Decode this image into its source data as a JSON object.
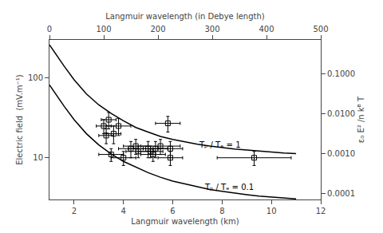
{
  "chart_data": {
    "type": "line",
    "x_label": "Langmuir wavelength (km)",
    "x2_label": "Langmuir wavelength (in Debye length)",
    "y_label": "Electric field  (mV.m⁻¹)",
    "y2_label": "ε₀ E² /n kᴮ T",
    "xlim": [
      1,
      12
    ],
    "xticks": [
      2,
      4,
      6,
      8,
      10,
      12
    ],
    "x2lim": [
      0,
      500
    ],
    "x2ticks": [
      0,
      100,
      200,
      300,
      400,
      500
    ],
    "ylim": [
      3,
      300
    ],
    "yticks": [
      10,
      100
    ],
    "y2lim": [
      7e-05,
      0.7
    ],
    "y2ticks": [
      0.0001,
      {
        "value": 0.001,
        "label": "0.0010"
      },
      {
        "value": 0.01,
        "label": "0.0100"
      },
      {
        "value": 0.1,
        "label": "0.1000"
      }
    ],
    "log": "y",
    "grid": false,
    "series": [
      {
        "type": "line",
        "color": "#000000",
        "line_style": "solid",
        "x": [
          1.0,
          1.3,
          1.6,
          2.0,
          2.5,
          3.0,
          3.5,
          4.0,
          4.5,
          5.0,
          5.5,
          6.0,
          6.5,
          7.0,
          7.5,
          8.0,
          8.5,
          9.0,
          9.5,
          10.0,
          10.5,
          11.0
        ],
        "values": [
          260,
          190,
          140,
          95,
          63,
          46,
          36,
          29,
          24,
          21,
          18.5,
          17,
          15.8,
          14.8,
          14.0,
          13.4,
          12.9,
          12.5,
          12.1,
          11.8,
          11.5,
          11.3
        ]
      },
      {
        "type": "line",
        "color": "#000000",
        "line_style": "solid",
        "x": [
          1.0,
          1.3,
          1.6,
          2.0,
          2.5,
          3.0,
          3.5,
          4.0,
          4.5,
          5.0,
          5.5,
          6.0,
          6.5,
          7.0,
          7.5,
          8.0,
          8.5,
          9.0,
          9.5,
          10.0,
          10.5,
          11.0
        ],
        "values": [
          82,
          60,
          44,
          30,
          20,
          14.5,
          11.2,
          9.0,
          7.6,
          6.5,
          5.7,
          5.1,
          4.7,
          4.3,
          4.0,
          3.8,
          3.6,
          3.45,
          3.3,
          3.2,
          3.1,
          3.05
        ]
      },
      {
        "type": "scatter",
        "color": "#000000",
        "marker": "square-open",
        "x": [
          3.2,
          3.3,
          3.4,
          3.5,
          3.6,
          3.8,
          4.0,
          4.3,
          4.5,
          4.6,
          5.0,
          5.1,
          5.2,
          5.3,
          5.5,
          5.9,
          5.9,
          9.3,
          5.8
        ],
        "values": [
          25,
          19,
          30,
          11,
          20,
          25,
          10,
          13,
          14,
          12,
          13,
          12,
          11,
          13,
          14,
          13,
          10,
          10,
          27
        ],
        "x_err_lo": [
          0.3,
          0.3,
          0.3,
          0.5,
          0.3,
          0.5,
          0.5,
          0.5,
          0.5,
          0.5,
          0.8,
          0.5,
          0.5,
          0.5,
          0.8,
          0.5,
          0.5,
          1.5,
          0.5
        ],
        "x_err_hi": [
          0.3,
          0.3,
          0.3,
          0.5,
          0.3,
          0.5,
          0.5,
          0.5,
          0.5,
          0.5,
          0.8,
          0.5,
          0.5,
          0.5,
          0.8,
          0.5,
          0.5,
          1.5,
          0.5
        ],
        "y_err_lo": [
          5,
          4,
          7,
          2,
          5,
          6,
          2,
          3,
          3,
          2,
          3,
          2,
          2,
          3,
          3,
          3,
          2,
          2,
          6
        ],
        "y_err_hi": [
          5,
          4,
          7,
          2,
          5,
          6,
          2,
          3,
          3,
          2,
          3,
          2,
          2,
          3,
          3,
          3,
          2,
          2,
          6
        ]
      }
    ],
    "annotations": [
      {
        "text": "Tₚ / Tₑ = 1",
        "x": 7.0,
        "y": 14.5
      },
      {
        "text": "Tₚ / Tₑ = 0.1",
        "x": 7.2,
        "y": 4.3
      }
    ]
  }
}
